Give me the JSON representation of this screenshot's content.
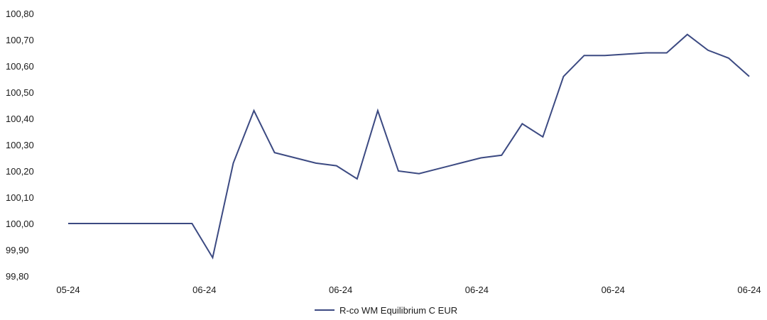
{
  "chart_data": {
    "type": "line",
    "title": "",
    "xlabel": "",
    "ylabel": "",
    "ylim": [
      99.8,
      100.8
    ],
    "y_ticks": [
      "99,80",
      "99,90",
      "100,00",
      "100,10",
      "100,20",
      "100,30",
      "100,40",
      "100,50",
      "100,60",
      "100,70",
      "100,80"
    ],
    "y_tick_values": [
      99.8,
      99.9,
      100.0,
      100.1,
      100.2,
      100.3,
      100.4,
      100.5,
      100.6,
      100.7,
      100.8
    ],
    "x_ticks": [
      "05-24",
      "06-24",
      "06-24",
      "06-24",
      "06-24",
      "06-24"
    ],
    "grid": false,
    "legend_position": "bottom-center",
    "series": [
      {
        "name": "R-co WM Equilibrium C EUR",
        "color": "#3c4a82",
        "values": [
          100.0,
          100.0,
          100.0,
          100.0,
          100.0,
          100.0,
          100.0,
          99.87,
          100.23,
          100.43,
          100.27,
          100.25,
          100.23,
          100.22,
          100.17,
          100.43,
          100.2,
          100.19,
          100.21,
          100.23,
          100.25,
          100.26,
          100.38,
          100.33,
          100.56,
          100.64,
          100.64,
          100.645,
          100.65,
          100.65,
          100.72,
          100.66,
          100.63,
          100.56
        ]
      }
    ]
  }
}
